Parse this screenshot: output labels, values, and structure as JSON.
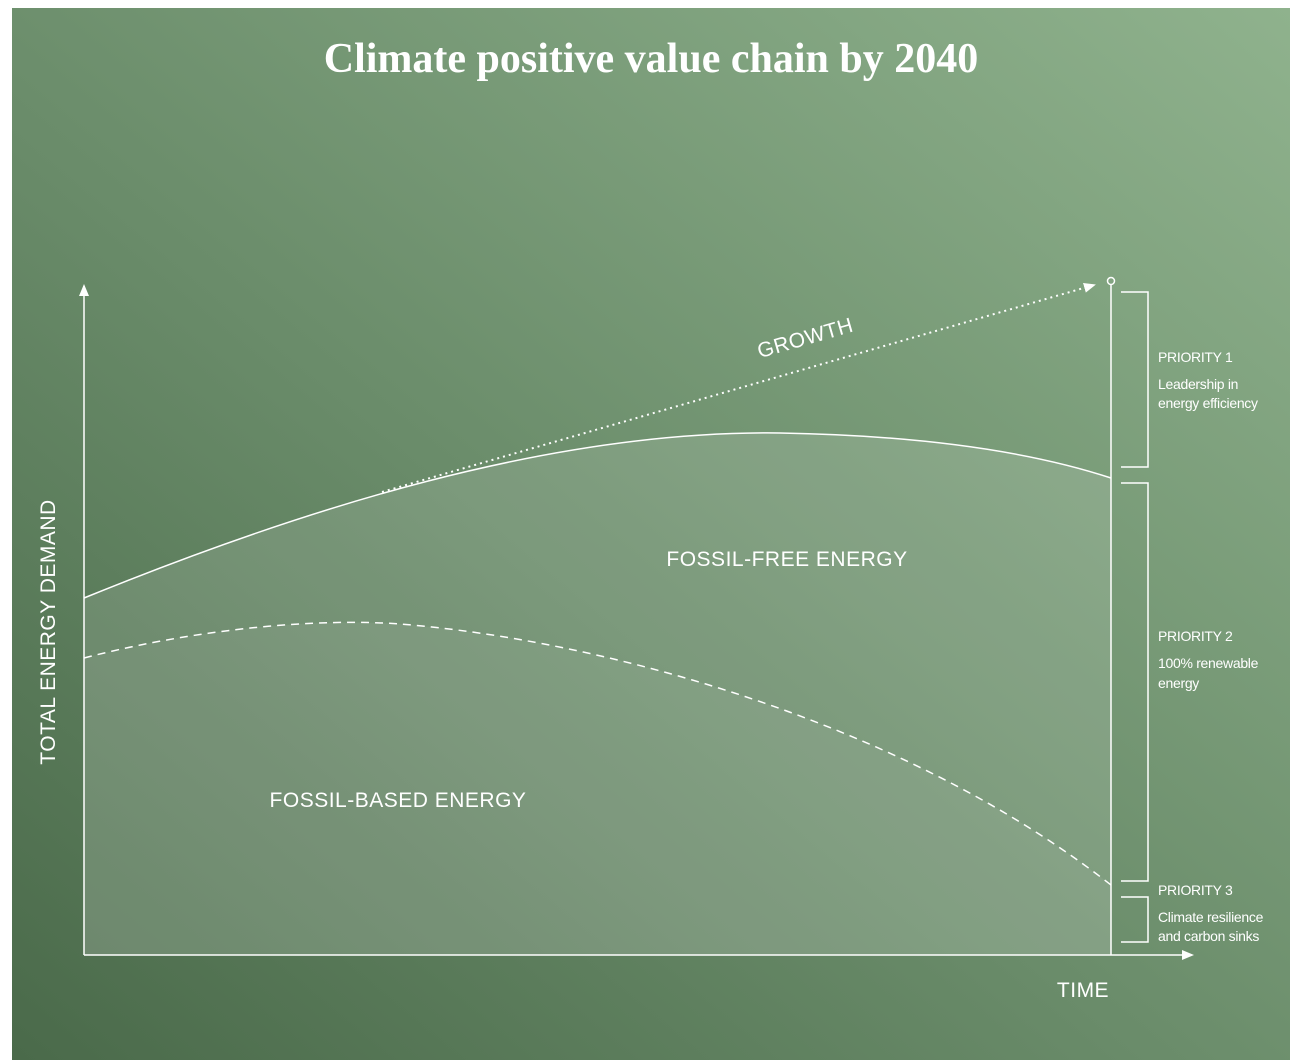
{
  "title": "Climate positive value chain by 2040",
  "axes": {
    "y_label": "TOTAL ENERGY DEMAND",
    "x_label": "TIME"
  },
  "annotations": {
    "growth": "GROWTH",
    "fossil_free": "FOSSIL-FREE ENERGY",
    "fossil_based": "FOSSIL-BASED ENERGY"
  },
  "priorities": [
    {
      "label": "PRIORITY 1",
      "lines": [
        "Leadership in",
        "energy efficiency"
      ]
    },
    {
      "label": "PRIORITY 2",
      "lines": [
        "100% renewable",
        "energy"
      ]
    },
    {
      "label": "PRIORITY 3",
      "lines": [
        "Climate resilience",
        "and carbon sinks"
      ]
    }
  ]
}
